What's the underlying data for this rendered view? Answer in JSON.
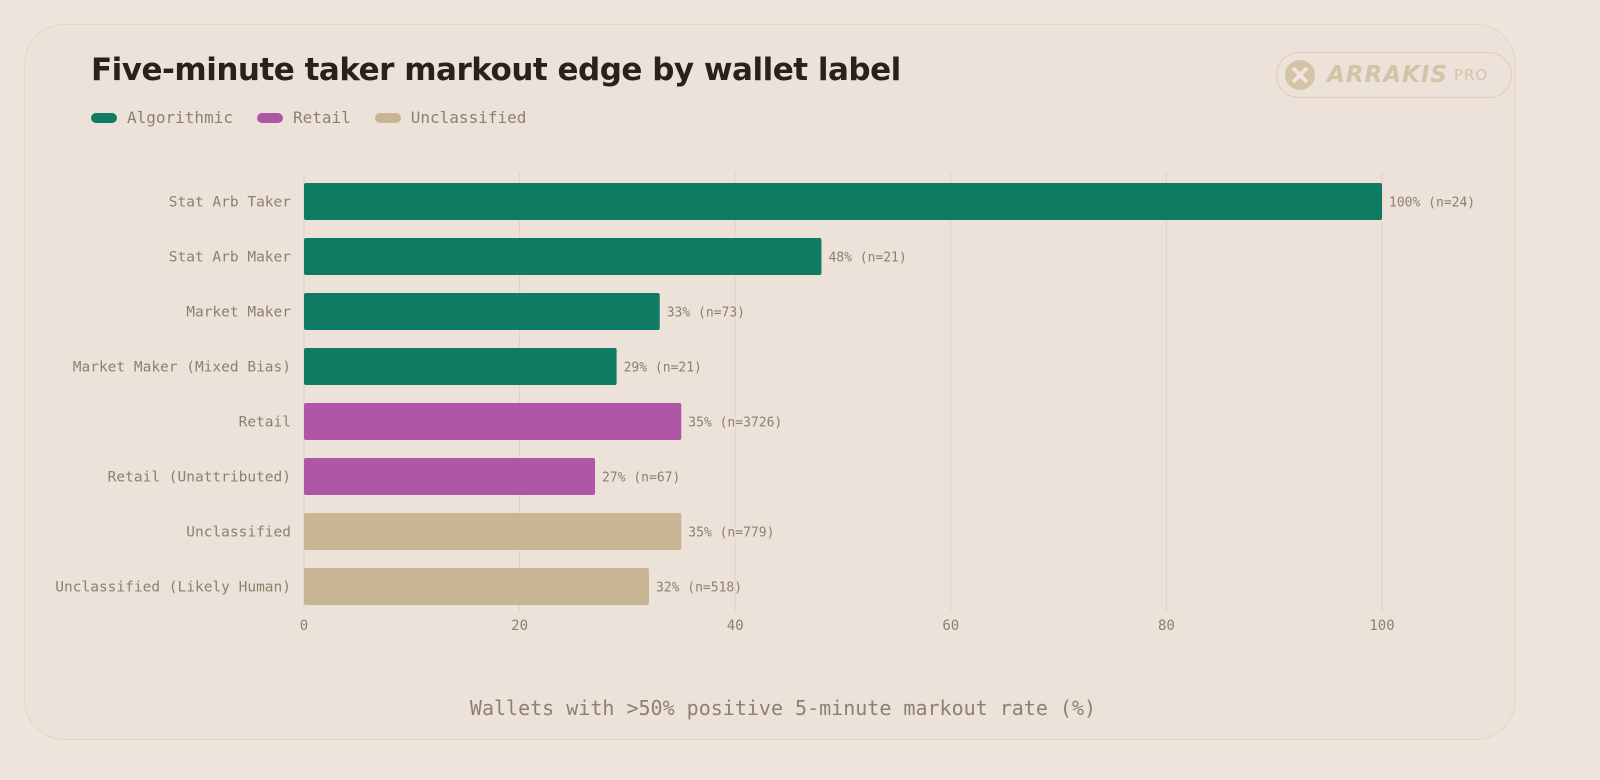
{
  "chart_data": {
    "type": "bar",
    "orientation": "horizontal",
    "title": "Five-minute taker markout edge by wallet label",
    "xlabel": "Wallets with >50% positive 5-minute markout rate (%)",
    "xlim": [
      0,
      100
    ],
    "xticks": [
      0,
      20,
      40,
      60,
      80,
      100
    ],
    "grid": true,
    "legend": {
      "placement": "top-left",
      "items": [
        {
          "label": "Algorithmic",
          "color": "#0f7b63"
        },
        {
          "label": "Retail",
          "color": "#b056a6"
        },
        {
          "label": "Unclassified",
          "color": "#c8b594"
        }
      ]
    },
    "bars": [
      {
        "category": "Stat Arb Taker",
        "value": 100,
        "value_label": "100%",
        "n_label": "(n=24)",
        "group": "Algorithmic"
      },
      {
        "category": "Stat Arb Maker",
        "value": 48,
        "value_label": "48%",
        "n_label": "(n=21)",
        "group": "Algorithmic"
      },
      {
        "category": "Market Maker",
        "value": 33,
        "value_label": "33%",
        "n_label": "(n=73)",
        "group": "Algorithmic"
      },
      {
        "category": "Market Maker (Mixed Bias)",
        "value": 29,
        "value_label": "29%",
        "n_label": "(n=21)",
        "group": "Algorithmic"
      },
      {
        "category": "Retail",
        "value": 35,
        "value_label": "35%",
        "n_label": "(n=3726)",
        "group": "Retail"
      },
      {
        "category": "Retail (Unattributed)",
        "value": 27,
        "value_label": "27%",
        "n_label": "(n=67)",
        "group": "Retail"
      },
      {
        "category": "Unclassified",
        "value": 35,
        "value_label": "35%",
        "n_label": "(n=779)",
        "group": "Unclassified"
      },
      {
        "category": "Unclassified (Likely Human)",
        "value": 32,
        "value_label": "32%",
        "n_label": "(n=518)",
        "group": "Unclassified"
      }
    ]
  },
  "badge": {
    "name": "ARRAKIS",
    "suffix": "PRO",
    "icon": "arrakis-logo-icon"
  },
  "colors": {
    "background": "#efe5dd",
    "text": "#2a211c",
    "muted": "#8c8169",
    "grid": "#e0d3c5"
  }
}
